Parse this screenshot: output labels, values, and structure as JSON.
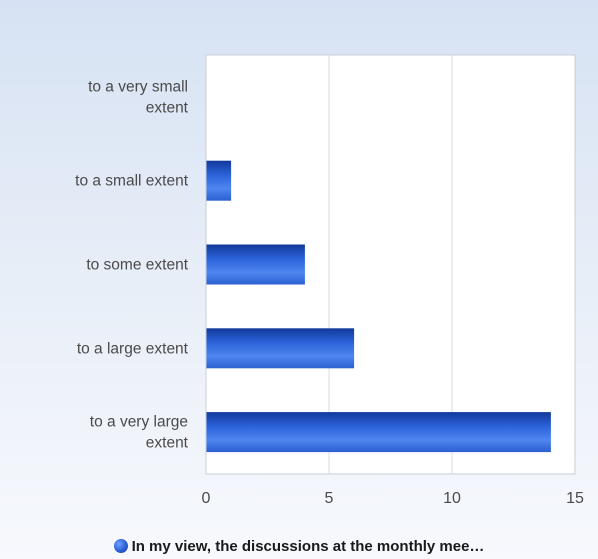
{
  "chart_data": {
    "type": "bar",
    "orientation": "horizontal",
    "categories": [
      [
        "to a very small",
        "extent"
      ],
      [
        "to a small extent"
      ],
      [
        "to some extent"
      ],
      [
        "to a large extent"
      ],
      [
        "to a very large",
        "extent"
      ]
    ],
    "values": [
      0,
      1,
      4,
      6,
      14
    ],
    "xlim": [
      0,
      15
    ],
    "xticks": [
      0,
      5,
      10,
      15
    ],
    "grid": true,
    "legend_position": "bottom",
    "series": [
      {
        "name": "In my view, the discussions at the monthly mee…",
        "values": [
          0,
          1,
          4,
          6,
          14
        ]
      }
    ],
    "colors": {
      "bar_dark": "#12399a",
      "bar_light": "#4f86f0",
      "grid": "#d6dbe4"
    }
  }
}
